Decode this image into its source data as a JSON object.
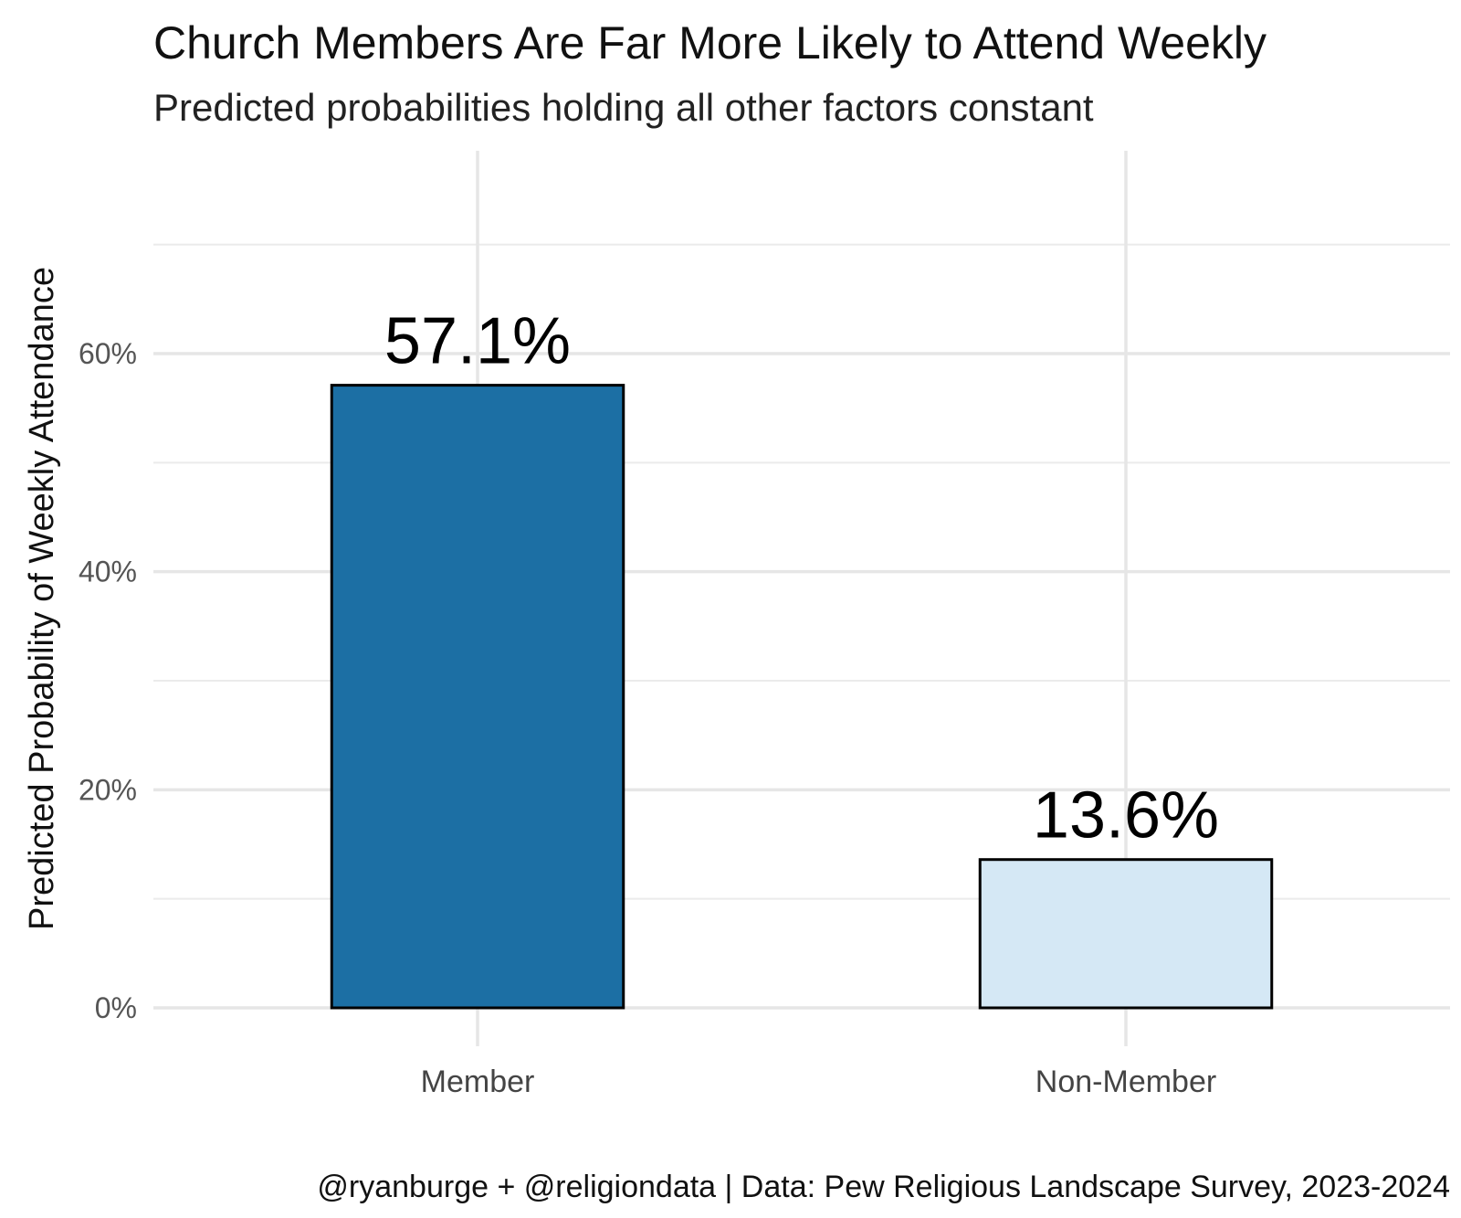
{
  "chart_data": {
    "type": "bar",
    "title": "Church Members Are Far More Likely to Attend Weekly",
    "subtitle": "Predicted probabilities holding all other factors constant",
    "ylabel": "Predicted Probability of Weekly Attendance",
    "xlabel": "",
    "categories": [
      "Member",
      "Non-Member"
    ],
    "values": [
      57.1,
      13.6
    ],
    "value_labels": [
      "57.1%",
      "13.6%"
    ],
    "bar_colors": [
      "#1c6fa4",
      "#d5e8f5"
    ],
    "bar_outline": "#000000",
    "ylim": [
      0,
      70
    ],
    "yticks": [
      0,
      20,
      40,
      60
    ],
    "ytick_labels": [
      "0%",
      "20%",
      "40%",
      "60%"
    ],
    "grid": true,
    "legend": "none",
    "caption": "@ryanburge + @religiondata | Data: Pew Religious Landscape Survey, 2023-2024"
  }
}
